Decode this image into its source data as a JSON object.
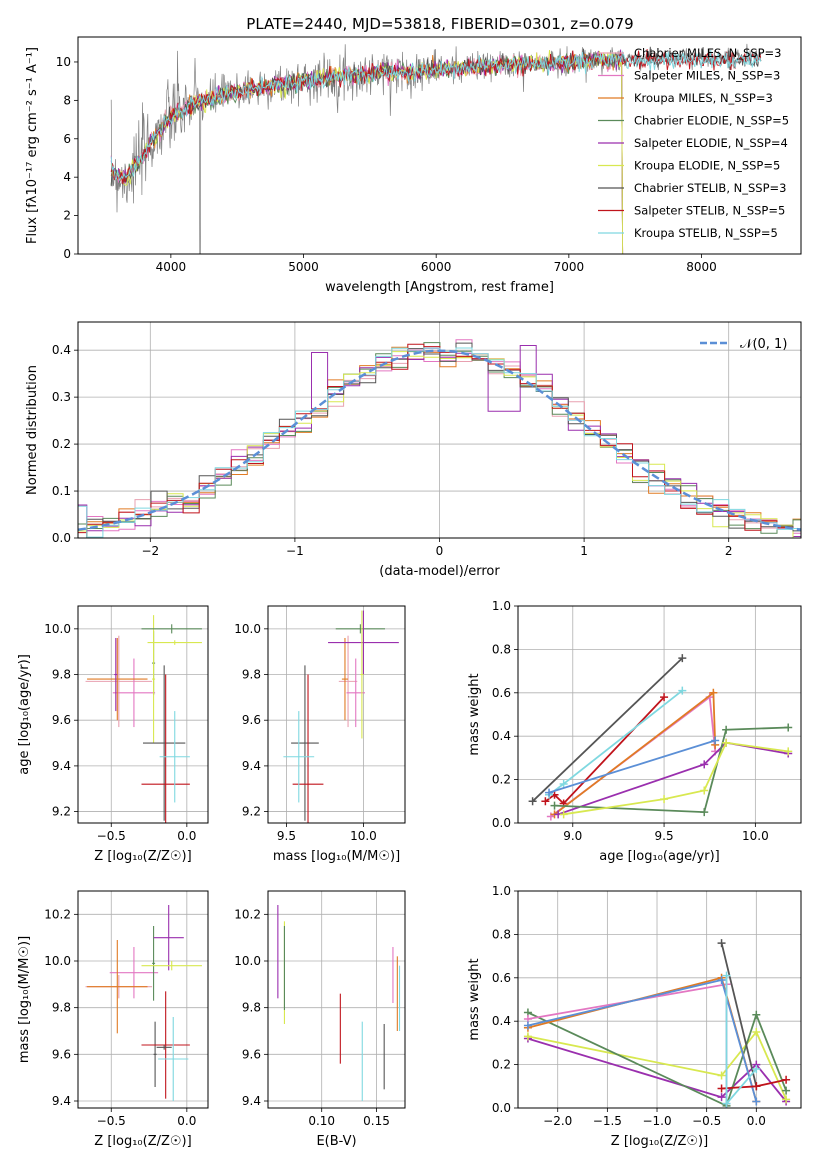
{
  "page": {
    "title": "PLATE=2440, MJD=53818, FIBERID=0301, z=0.079"
  },
  "colors": {
    "chabrier_miles": "#e8a0b0",
    "salpeter_miles": "#e377c2",
    "kroupa_miles": "#e07b24",
    "chabrier_elodie": "#5a8a5a",
    "salpeter_elodie": "#9a2fae",
    "kroupa_elodie": "#d8e850",
    "chabrier_stelib": "#555555",
    "salpeter_stelib": "#c0141c",
    "kroupa_stelib": "#7fd8e0",
    "gauss": "#5b8fd6",
    "blue_line": "#5b8fd6"
  },
  "chart_data": [
    {
      "id": "spectrum",
      "type": "line",
      "title": "PLATE=2440, MJD=53818, FIBERID=0301, z=0.079",
      "xlabel": "wavelength [Angstrom, rest frame]",
      "ylabel": "Flux [fλ10⁻¹⁷ erg cm⁻² s⁻¹ A⁻¹]",
      "xlim": [
        3300,
        8750
      ],
      "ylim": [
        0,
        11.3
      ],
      "xticks": [
        4000,
        5000,
        6000,
        7000,
        8000
      ],
      "yticks": [
        0,
        2,
        4,
        6,
        8,
        10
      ],
      "legend_position": "top-right",
      "legend": [
        "Chabrier MILES, N_SSP=3",
        "Salpeter MILES, N_SSP=3",
        "Kroupa MILES, N_SSP=3",
        "Chabrier ELODIE, N_SSP=5",
        "Salpeter ELODIE, N_SSP=4",
        "Kroupa ELODIE, N_SSP=5",
        "Chabrier STELIB, N_SSP=3",
        "Salpeter STELIB, N_SSP=5",
        "Kroupa STELIB, N_SSP=5"
      ],
      "legend_keys": [
        "chabrier_miles",
        "salpeter_miles",
        "kroupa_miles",
        "chabrier_elodie",
        "salpeter_elodie",
        "kroupa_elodie",
        "chabrier_stelib",
        "salpeter_stelib",
        "kroupa_stelib"
      ],
      "continuum": {
        "x": [
          3550,
          3650,
          3750,
          3850,
          3950,
          4050,
          4200,
          4400,
          4600,
          4800,
          5000,
          5200,
          5400,
          5600,
          5800,
          6000,
          6200,
          6400,
          6600,
          6800,
          7000,
          7200,
          7400
        ],
        "y": [
          4.3,
          3.9,
          4.7,
          5.8,
          6.8,
          7.4,
          7.9,
          8.3,
          8.6,
          8.8,
          9.0,
          9.2,
          9.3,
          9.5,
          9.5,
          9.6,
          9.7,
          9.8,
          9.9,
          9.9,
          10.0,
          10.1,
          10.1
        ]
      }
    },
    {
      "id": "residuals",
      "type": "histogram",
      "xlabel": "(data-model)/error",
      "ylabel": "Normed distribution",
      "xlim": [
        -2.5,
        2.5
      ],
      "ylim": [
        0,
        0.46
      ],
      "xticks": [
        -2,
        -1,
        0,
        1,
        2
      ],
      "xtick_labels": [
        "−2",
        "−1",
        "0",
        "1",
        "2"
      ],
      "yticks": [
        0.0,
        0.1,
        0.2,
        0.3,
        0.4
      ],
      "ytick_labels": [
        "0.0",
        "0.1",
        "0.2",
        "0.3",
        "0.4"
      ],
      "legend_position": "top-right",
      "legend": [
        "𝒩(0, 1)"
      ],
      "bin_width": 0.111
    },
    {
      "id": "age_vs_Z",
      "type": "errorbar",
      "xlabel": "Z [log₁₀(Z/Z☉)]",
      "ylabel": "age  [log₁₀(age/yr)]",
      "xlim": [
        -0.72,
        0.14
      ],
      "ylim": [
        9.15,
        10.1
      ],
      "xticks": [
        -0.5,
        0.0
      ],
      "xtick_labels": [
        "−0.5",
        "0.0"
      ],
      "yticks": [
        9.2,
        9.4,
        9.6,
        9.8,
        10.0
      ],
      "ytick_labels": [
        "9.2",
        "9.4",
        "9.6",
        "9.8",
        "10.0"
      ],
      "points": [
        {
          "key": "chabrier_miles",
          "x": -0.45,
          "y": 9.77,
          "xerr": 0.22,
          "yerr": 0.2
        },
        {
          "key": "salpeter_miles",
          "x": -0.35,
          "y": 9.72,
          "xerr": 0.14,
          "yerr": 0.15
        },
        {
          "key": "kroupa_miles",
          "x": -0.46,
          "y": 9.78,
          "xerr": 0.2,
          "yerr": 0.18
        },
        {
          "key": "chabrier_elodie",
          "x": -0.22,
          "y": 9.85,
          "xerr": 0.01,
          "yerr": 0.14
        },
        {
          "key": "salpeter_elodie",
          "x": -0.47,
          "y": 9.8,
          "xerr": 0.01,
          "yerr": 0.16
        },
        {
          "key": "kroupa_elodie",
          "x": -0.22,
          "y": 9.78,
          "xerr": 0.01,
          "yerr": 0.28
        },
        {
          "key": "chabrier_stelib",
          "x": -0.15,
          "y": 9.5,
          "xerr": 0.14,
          "yerr": 0.34
        },
        {
          "key": "salpeter_stelib",
          "x": -0.14,
          "y": 9.32,
          "xerr": 0.16,
          "yerr": 0.48
        },
        {
          "key": "kroupa_stelib",
          "x": -0.08,
          "y": 9.44,
          "xerr": 0.1,
          "yerr": 0.2
        },
        {
          "key": "chabrier_elodie",
          "x": -0.1,
          "y": 10.0,
          "xerr": 0.2,
          "yerr": 0.02
        },
        {
          "key": "kroupa_elodie",
          "x": -0.08,
          "y": 9.94,
          "xerr": 0.18,
          "yerr": 0.01
        }
      ]
    },
    {
      "id": "age_vs_mass",
      "type": "errorbar",
      "xlabel": "mass [log₁₀(M/M☉)]",
      "ylabel": "",
      "xlim": [
        9.38,
        10.27
      ],
      "ylim": [
        9.15,
        10.1
      ],
      "xticks": [
        9.5,
        10.0
      ],
      "xtick_labels": [
        "9.5",
        "10.0"
      ],
      "yticks": [
        9.2,
        9.4,
        9.6,
        9.8,
        10.0
      ],
      "ytick_labels": [
        "9.2",
        "9.4",
        "9.6",
        "9.8",
        "10.0"
      ],
      "points": [
        {
          "key": "chabrier_miles",
          "x": 9.9,
          "y": 9.77,
          "xerr": 0.06,
          "yerr": 0.2
        },
        {
          "key": "salpeter_miles",
          "x": 9.95,
          "y": 9.72,
          "xerr": 0.06,
          "yerr": 0.15
        },
        {
          "key": "kroupa_miles",
          "x": 9.88,
          "y": 9.78,
          "xerr": 0.02,
          "yerr": 0.18
        },
        {
          "key": "chabrier_elodie",
          "x": 9.98,
          "y": 10.0,
          "xerr": 0.16,
          "yerr": 0.02
        },
        {
          "key": "salpeter_elodie",
          "x": 10.0,
          "y": 9.94,
          "xerr": 0.23,
          "yerr": 0.14
        },
        {
          "key": "kroupa_elodie",
          "x": 9.99,
          "y": 9.8,
          "xerr": 0.01,
          "yerr": 0.28
        },
        {
          "key": "chabrier_stelib",
          "x": 9.62,
          "y": 9.5,
          "xerr": 0.09,
          "yerr": 0.34
        },
        {
          "key": "salpeter_stelib",
          "x": 9.64,
          "y": 9.32,
          "xerr": 0.1,
          "yerr": 0.48
        },
        {
          "key": "kroupa_stelib",
          "x": 9.58,
          "y": 9.44,
          "xerr": 0.1,
          "yerr": 0.2
        }
      ]
    },
    {
      "id": "weight_vs_age",
      "type": "line",
      "xlabel": "age  [log₁₀(age/yr)]",
      "ylabel": "mass weight",
      "xlim": [
        8.7,
        10.25
      ],
      "ylim": [
        0,
        1.0
      ],
      "xticks": [
        9.0,
        9.5,
        10.0
      ],
      "xtick_labels": [
        "9.0",
        "9.5",
        "10.0"
      ],
      "yticks": [
        0.0,
        0.2,
        0.4,
        0.6,
        0.8,
        1.0
      ],
      "ytick_labels": [
        "0.0",
        "0.2",
        "0.4",
        "0.6",
        "0.8",
        "1.0"
      ],
      "series": [
        {
          "key": "chabrier_stelib",
          "x": [
            8.78,
            9.6
          ],
          "y": [
            0.1,
            0.76
          ]
        },
        {
          "key": "salpeter_stelib",
          "x": [
            8.85,
            8.9,
            8.95,
            9.5
          ],
          "y": [
            0.1,
            0.13,
            0.09,
            0.58
          ]
        },
        {
          "key": "kroupa_stelib",
          "x": [
            8.87,
            8.95,
            9.6
          ],
          "y": [
            0.13,
            0.18,
            0.61
          ]
        },
        {
          "key": "salpeter_miles",
          "x": [
            8.88,
            9.75,
            9.78
          ],
          "y": [
            0.03,
            0.58,
            0.33
          ]
        },
        {
          "key": "kroupa_miles",
          "x": [
            8.9,
            9.77,
            9.78
          ],
          "y": [
            0.04,
            0.6,
            0.36
          ]
        },
        {
          "key": "blue_line",
          "x": [
            8.87,
            9.78
          ],
          "y": [
            0.14,
            0.38
          ]
        },
        {
          "key": "salpeter_elodie",
          "x": [
            8.92,
            9.72,
            9.84,
            10.18
          ],
          "y": [
            0.04,
            0.27,
            0.37,
            0.32
          ]
        },
        {
          "key": "chabrier_elodie",
          "x": [
            8.9,
            9.72,
            9.84,
            10.18
          ],
          "y": [
            0.08,
            0.05,
            0.43,
            0.44
          ]
        },
        {
          "key": "kroupa_elodie",
          "x": [
            8.95,
            9.5,
            9.72,
            9.84,
            10.18
          ],
          "y": [
            0.04,
            0.11,
            0.15,
            0.37,
            0.33
          ]
        }
      ]
    },
    {
      "id": "mass_vs_Z",
      "type": "errorbar",
      "xlabel": "Z [log₁₀(Z/Z☉)]",
      "ylabel": "mass [log₁₀(M/M☉)]",
      "xlim": [
        -0.72,
        0.14
      ],
      "ylim": [
        9.37,
        10.3
      ],
      "xticks": [
        -0.5,
        0.0
      ],
      "xtick_labels": [
        "−0.5",
        "0.0"
      ],
      "yticks": [
        9.4,
        9.6,
        9.8,
        10.0,
        10.2
      ],
      "ytick_labels": [
        "9.4",
        "9.6",
        "9.8",
        "10.0",
        "10.2"
      ],
      "points": [
        {
          "key": "chabrier_miles",
          "x": -0.45,
          "y": 9.89,
          "xerr": 0.22,
          "yerr": 0.05
        },
        {
          "key": "salpeter_miles",
          "x": -0.35,
          "y": 9.95,
          "xerr": 0.16,
          "yerr": 0.11
        },
        {
          "key": "kroupa_miles",
          "x": -0.46,
          "y": 9.89,
          "xerr": 0.2,
          "yerr": 0.2
        },
        {
          "key": "chabrier_elodie",
          "x": -0.22,
          "y": 9.99,
          "xerr": 0.01,
          "yerr": 0.16
        },
        {
          "key": "salpeter_elodie",
          "x": -0.12,
          "y": 10.1,
          "xerr": 0.1,
          "yerr": 0.14
        },
        {
          "key": "kroupa_elodie",
          "x": -0.1,
          "y": 9.98,
          "xerr": 0.2,
          "yerr": 0.02
        },
        {
          "key": "chabrier_stelib",
          "x": -0.21,
          "y": 9.6,
          "xerr": 0.01,
          "yerr": 0.14
        },
        {
          "key": "salpeter_stelib",
          "x": -0.14,
          "y": 9.64,
          "xerr": 0.16,
          "yerr": 0.23
        },
        {
          "key": "kroupa_stelib",
          "x": -0.09,
          "y": 9.58,
          "xerr": 0.1,
          "yerr": 0.18
        },
        {
          "key": "chabrier_stelib",
          "x": -0.15,
          "y": 9.63,
          "xerr": 0.05,
          "yerr": 0.01
        }
      ]
    },
    {
      "id": "mass_vs_ebv",
      "type": "errorbar",
      "xlabel": "E(B-V)",
      "ylabel": "",
      "xlim": [
        0.051,
        0.176
      ],
      "ylim": [
        9.37,
        10.3
      ],
      "xticks": [
        0.1,
        0.15
      ],
      "xtick_labels": [
        "0.10",
        "0.15"
      ],
      "yticks": [
        9.4,
        9.6,
        9.8,
        10.0,
        10.2
      ],
      "ytick_labels": [
        "9.4",
        "9.6",
        "9.8",
        "10.0",
        "10.2"
      ],
      "points": [
        {
          "key": "salpeter_elodie",
          "x": 0.06,
          "y": 10.04,
          "xerr": 0,
          "yerr": 0.2
        },
        {
          "key": "kroupa_elodie",
          "x": 0.066,
          "y": 9.95,
          "xerr": 0,
          "yerr": 0.22
        },
        {
          "key": "chabrier_elodie",
          "x": 0.066,
          "y": 9.97,
          "xerr": 0,
          "yerr": 0.18
        },
        {
          "key": "salpeter_stelib",
          "x": 0.117,
          "y": 9.71,
          "xerr": 0,
          "yerr": 0.15
        },
        {
          "key": "kroupa_stelib",
          "x": 0.137,
          "y": 9.57,
          "xerr": 0,
          "yerr": 0.17
        },
        {
          "key": "chabrier_stelib",
          "x": 0.157,
          "y": 9.59,
          "xerr": 0,
          "yerr": 0.14
        },
        {
          "key": "salpeter_miles",
          "x": 0.165,
          "y": 9.94,
          "xerr": 0,
          "yerr": 0.12
        },
        {
          "key": "kroupa_miles",
          "x": 0.169,
          "y": 9.86,
          "xerr": 0,
          "yerr": 0.16
        },
        {
          "key": "kroupa_stelib",
          "x": 0.171,
          "y": 9.84,
          "xerr": 0,
          "yerr": 0.14
        }
      ]
    },
    {
      "id": "weight_vs_Z",
      "type": "line",
      "xlabel": "Z [log₁₀(Z/Z☉)]",
      "ylabel": "mass weight",
      "xlim": [
        -2.4,
        0.45
      ],
      "ylim": [
        0,
        1.0
      ],
      "xticks": [
        -2.0,
        -1.5,
        -1.0,
        -0.5,
        0.0
      ],
      "xtick_labels": [
        "−2.0",
        "−1.5",
        "−1.0",
        "−0.5",
        "0.0"
      ],
      "yticks": [
        0.0,
        0.2,
        0.4,
        0.6,
        0.8,
        1.0
      ],
      "ytick_labels": [
        "0.0",
        "0.2",
        "0.4",
        "0.6",
        "0.8",
        "1.0"
      ],
      "series": [
        {
          "key": "salpeter_elodie",
          "x": [
            -2.3,
            -0.35,
            0.0,
            0.3
          ],
          "y": [
            0.32,
            0.05,
            0.2,
            0.03
          ]
        },
        {
          "key": "kroupa_elodie",
          "x": [
            -2.3,
            -0.35,
            0.0,
            0.3
          ],
          "y": [
            0.33,
            0.15,
            0.35,
            0.04
          ]
        },
        {
          "key": "chabrier_elodie",
          "x": [
            -2.3,
            -0.3,
            0.0,
            0.3
          ],
          "y": [
            0.44,
            0.01,
            0.43,
            0.08
          ]
        },
        {
          "key": "salpeter_miles",
          "x": [
            -2.3,
            -0.3,
            -0.3
          ],
          "y": [
            0.41,
            0.57,
            0.02
          ]
        },
        {
          "key": "kroupa_miles",
          "x": [
            -2.3,
            -0.35,
            0.0
          ],
          "y": [
            0.37,
            0.6,
            0.03
          ]
        },
        {
          "key": "blue_line",
          "x": [
            -2.3,
            -0.35,
            0.0
          ],
          "y": [
            0.38,
            0.59,
            0.03
          ]
        },
        {
          "key": "chabrier_stelib",
          "x": [
            -0.35,
            0.0,
            0.0
          ],
          "y": [
            0.76,
            0.1,
            0.1
          ]
        },
        {
          "key": "salpeter_stelib",
          "x": [
            -0.35,
            0.0,
            0.3
          ],
          "y": [
            0.09,
            0.1,
            0.13
          ]
        },
        {
          "key": "kroupa_stelib",
          "x": [
            -0.3,
            -0.3,
            0.0
          ],
          "y": [
            0.61,
            0.02,
            0.18
          ]
        }
      ]
    }
  ]
}
